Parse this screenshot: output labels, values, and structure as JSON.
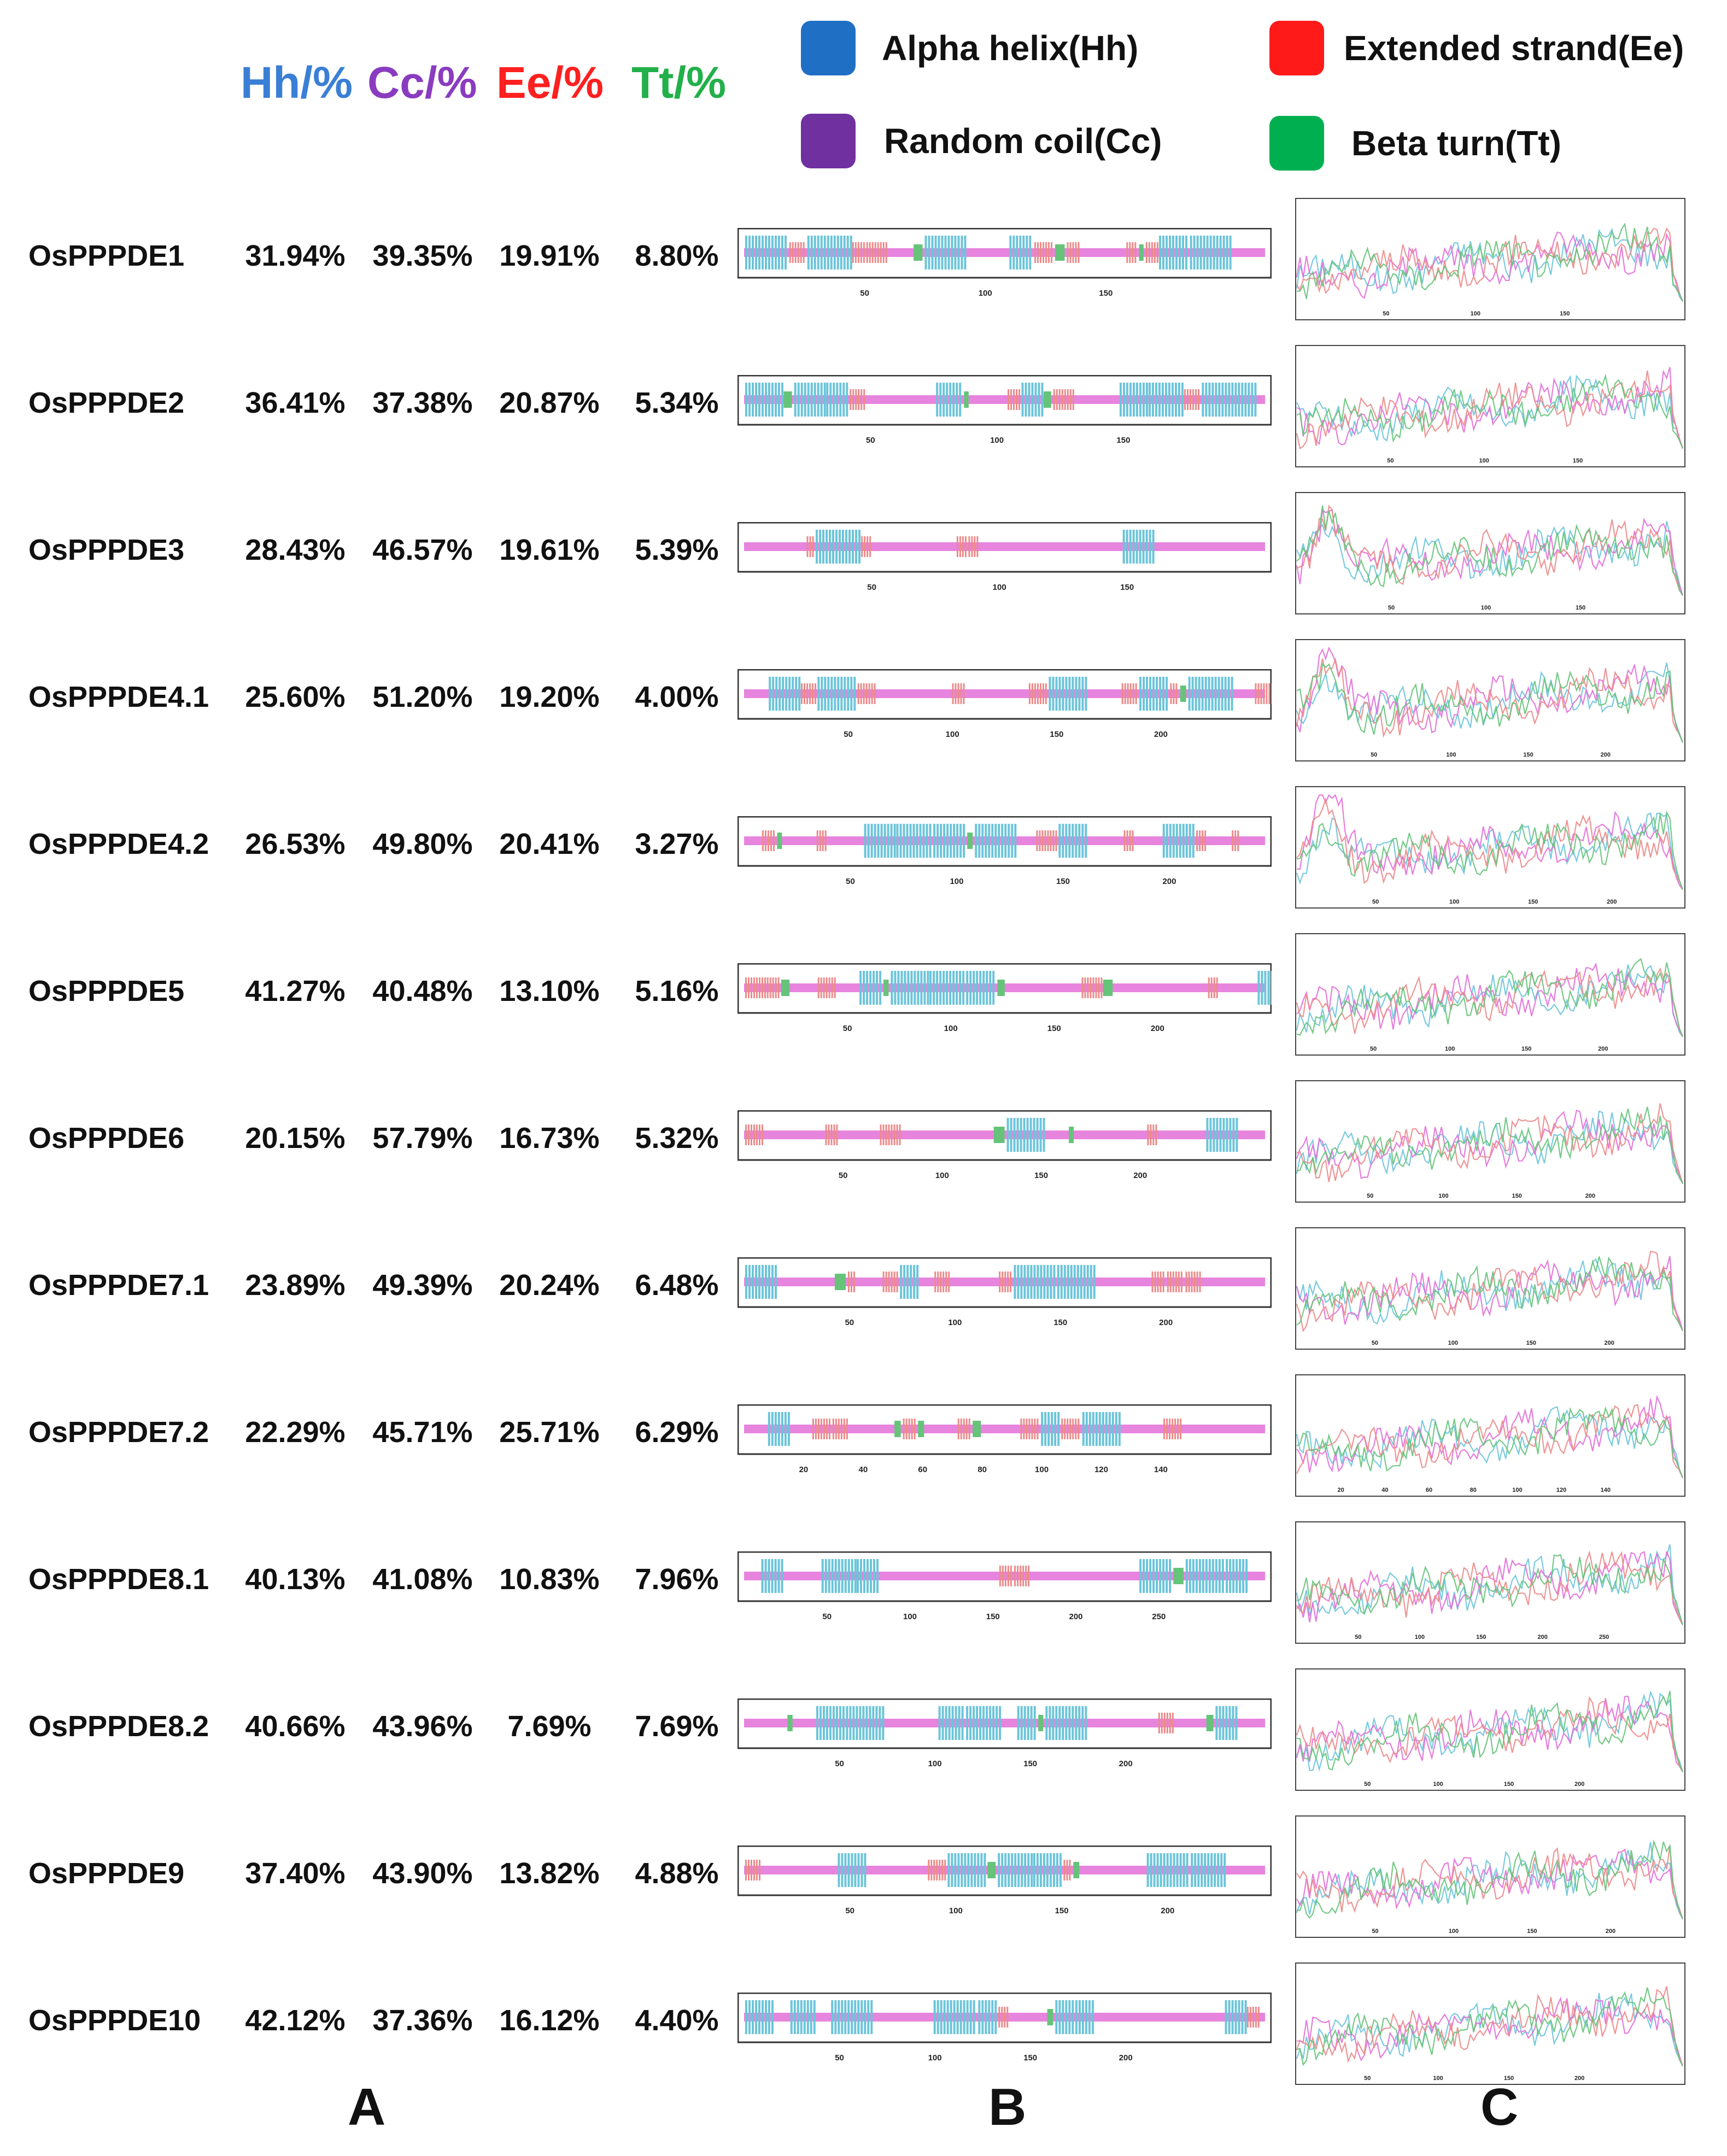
{
  "headers": {
    "hh": "Hh/%",
    "cc": "Cc/%",
    "ee": "Ee/%",
    "tt": "Tt/%"
  },
  "legend": [
    {
      "label": "Alpha helix(Hh)",
      "color": "#1f6fc5"
    },
    {
      "label": "Extended strand(Ee)",
      "color": "#ff1a1a"
    },
    {
      "label": "Random coil(Cc)",
      "color": "#7030a0"
    },
    {
      "label": "Beta turn(Tt)",
      "color": "#00b050"
    }
  ],
  "header_colors": {
    "hh": "#3a7fd5",
    "cc": "#8a3cc0",
    "ee": "#ff2020",
    "tt": "#22b04a"
  },
  "panel_labels": {
    "a": "A",
    "b": "B",
    "c": "C"
  },
  "chart_data": {
    "type": "table",
    "columns": [
      "Hh/%",
      "Cc/%",
      "Ee/%",
      "Tt/%"
    ],
    "rows": [
      {
        "name": "OsPPPDE1",
        "hh": "31.94%",
        "cc": "39.35%",
        "ee": "19.91%",
        "tt": "8.80%",
        "length": 216,
        "ticks": [
          50,
          100,
          150
        ]
      },
      {
        "name": "OsPPPDE2",
        "hh": "36.41%",
        "cc": "37.38%",
        "ee": "20.87%",
        "tt": "5.34%",
        "length": 206,
        "ticks": [
          50,
          100,
          150
        ]
      },
      {
        "name": "OsPPPDE3",
        "hh": "28.43%",
        "cc": "46.57%",
        "ee": "19.61%",
        "tt": "5.39%",
        "length": 204,
        "ticks": [
          50,
          100,
          150
        ]
      },
      {
        "name": "OsPPPDE4.1",
        "hh": "25.60%",
        "cc": "51.20%",
        "ee": "19.20%",
        "tt": "4.00%",
        "length": 250,
        "ticks": [
          50,
          100,
          150,
          200
        ]
      },
      {
        "name": "OsPPPDE4.2",
        "hh": "26.53%",
        "cc": "49.80%",
        "ee": "20.41%",
        "tt": "3.27%",
        "length": 245,
        "ticks": [
          50,
          100,
          150,
          200
        ]
      },
      {
        "name": "OsPPPDE5",
        "hh": "41.27%",
        "cc": "40.48%",
        "ee": "13.10%",
        "tt": "5.16%",
        "length": 252,
        "ticks": [
          50,
          100,
          150,
          200
        ]
      },
      {
        "name": "OsPPPDE6",
        "hh": "20.15%",
        "cc": "57.79%",
        "ee": "16.73%",
        "tt": "5.32%",
        "length": 263,
        "ticks": [
          50,
          100,
          150,
          200
        ]
      },
      {
        "name": "OsPPPDE7.1",
        "hh": "23.89%",
        "cc": "49.39%",
        "ee": "20.24%",
        "tt": "6.48%",
        "length": 247,
        "ticks": [
          50,
          100,
          150,
          200
        ]
      },
      {
        "name": "OsPPPDE7.2",
        "hh": "22.29%",
        "cc": "45.71%",
        "ee": "25.71%",
        "tt": "6.29%",
        "length": 175,
        "ticks": [
          20,
          40,
          60,
          80,
          100,
          120,
          140
        ]
      },
      {
        "name": "OsPPPDE8.1",
        "hh": "40.13%",
        "cc": "41.08%",
        "ee": "10.83%",
        "tt": "7.96%",
        "length": 314,
        "ticks": [
          50,
          100,
          150,
          200,
          250
        ]
      },
      {
        "name": "OsPPPDE8.2",
        "hh": "40.66%",
        "cc": "43.96%",
        "ee": "7.69%",
        "tt": "7.69%",
        "length": 273,
        "ticks": [
          50,
          100,
          150,
          200
        ]
      },
      {
        "name": "OsPPPDE9",
        "hh": "37.40%",
        "cc": "43.90%",
        "ee": "13.82%",
        "tt": "4.88%",
        "length": 246,
        "ticks": [
          50,
          100,
          150,
          200
        ]
      },
      {
        "name": "OsPPPDE10",
        "hh": "42.12%",
        "cc": "37.36%",
        "ee": "16.12%",
        "tt": "4.40%",
        "length": 273,
        "ticks": [
          50,
          100,
          150,
          200
        ]
      }
    ],
    "track_colors": {
      "helix": "#6cc4da",
      "strand": "#ec8a8a",
      "coil": "#e36fd8",
      "turn": "#66c37a"
    }
  }
}
